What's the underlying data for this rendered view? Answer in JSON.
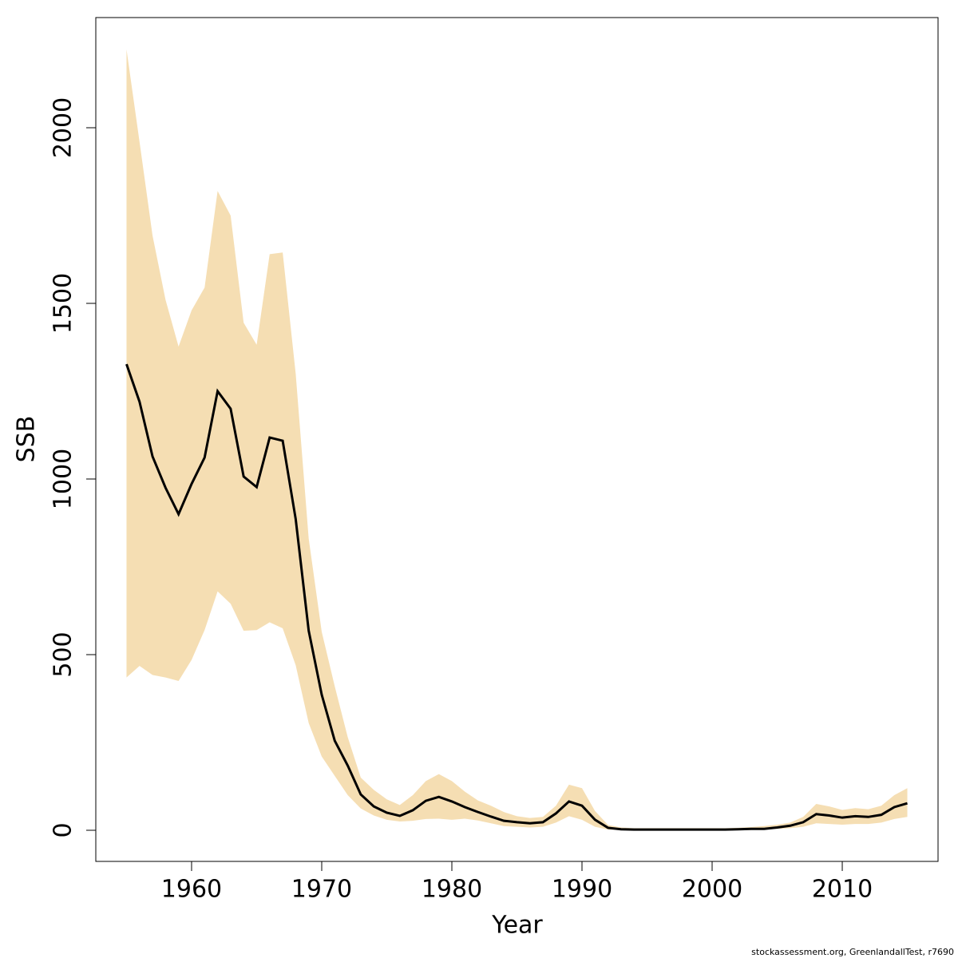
{
  "chart_data": {
    "type": "band_line",
    "xlabel": "Year",
    "ylabel": "SSB",
    "footer": "stockassessment.org, GreenlandallTest, r7690",
    "x": [
      1955,
      1956,
      1957,
      1958,
      1959,
      1960,
      1961,
      1962,
      1963,
      1964,
      1965,
      1966,
      1967,
      1968,
      1969,
      1970,
      1971,
      1972,
      1973,
      1974,
      1975,
      1976,
      1977,
      1978,
      1979,
      1980,
      1981,
      1982,
      1983,
      1984,
      1985,
      1986,
      1987,
      1988,
      1989,
      1990,
      1991,
      1992,
      1993,
      1994,
      1995,
      1996,
      1997,
      1998,
      1999,
      2000,
      2001,
      2002,
      2003,
      2004,
      2005,
      2006,
      2007,
      2008,
      2009,
      2010,
      2011,
      2012,
      2013,
      2014,
      2015
    ],
    "values": [
      1327,
      1220,
      1064,
      975,
      900,
      986,
      1061,
      1250,
      1200,
      1007,
      977,
      1118,
      1109,
      886,
      568,
      386,
      255,
      184,
      102,
      68,
      50,
      41,
      57,
      84,
      95,
      82,
      66,
      52,
      39,
      27,
      23,
      20,
      23,
      48,
      82,
      70,
      30,
      7,
      3,
      2,
      2,
      2,
      2,
      2,
      2,
      2,
      2,
      3,
      4,
      4,
      8,
      13,
      23,
      46,
      42,
      36,
      40,
      38,
      44,
      66,
      77
    ],
    "upper": [
      2223,
      1960,
      1693,
      1510,
      1377,
      1480,
      1545,
      1820,
      1750,
      1445,
      1382,
      1640,
      1645,
      1300,
      830,
      565,
      410,
      265,
      150,
      115,
      88,
      72,
      100,
      140,
      160,
      140,
      110,
      85,
      70,
      52,
      40,
      35,
      38,
      70,
      130,
      120,
      55,
      15,
      8,
      6,
      6,
      6,
      6,
      6,
      6,
      6,
      6,
      7,
      9,
      12,
      16,
      22,
      38,
      75,
      68,
      58,
      63,
      60,
      70,
      100,
      120
    ],
    "lower": [
      435,
      468,
      442,
      435,
      425,
      485,
      570,
      680,
      645,
      568,
      570,
      592,
      575,
      470,
      305,
      210,
      155,
      100,
      62,
      42,
      30,
      25,
      27,
      32,
      33,
      30,
      33,
      28,
      20,
      12,
      10,
      8,
      10,
      22,
      40,
      30,
      10,
      2,
      1,
      1,
      1,
      1,
      1,
      1,
      1,
      1,
      1,
      1,
      1,
      2,
      4,
      6,
      10,
      20,
      18,
      16,
      18,
      18,
      22,
      32,
      38
    ],
    "color": "#000000",
    "band_color": "#f5deb3",
    "xlim": [
      1952.64,
      2017.36
    ],
    "ylim": [
      -88.6,
      2313.6
    ],
    "xticks": [
      1960,
      1970,
      1980,
      1990,
      2000,
      2010
    ],
    "yticks": [
      0,
      500,
      1000,
      1500,
      2000
    ]
  }
}
